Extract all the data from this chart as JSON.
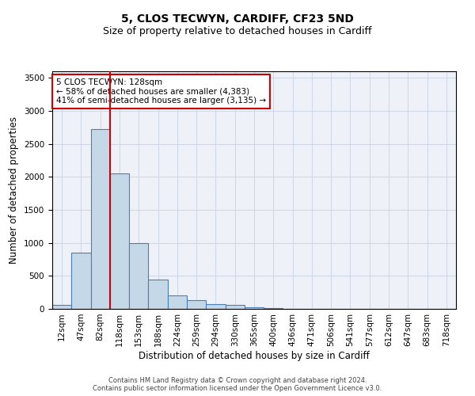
{
  "title1": "5, CLOS TECWYN, CARDIFF, CF23 5ND",
  "title2": "Size of property relative to detached houses in Cardiff",
  "xlabel": "Distribution of detached houses by size in Cardiff",
  "ylabel": "Number of detached properties",
  "footer1": "Contains HM Land Registry data © Crown copyright and database right 2024.",
  "footer2": "Contains public sector information licensed under the Open Government Licence v3.0.",
  "bar_labels": [
    "12sqm",
    "47sqm",
    "82sqm",
    "118sqm",
    "153sqm",
    "188sqm",
    "224sqm",
    "259sqm",
    "294sqm",
    "330sqm",
    "365sqm",
    "400sqm",
    "436sqm",
    "471sqm",
    "506sqm",
    "541sqm",
    "577sqm",
    "612sqm",
    "647sqm",
    "683sqm",
    "718sqm"
  ],
  "bar_values": [
    55,
    850,
    2720,
    2050,
    1000,
    450,
    200,
    130,
    70,
    55,
    25,
    10,
    5,
    5,
    5,
    5,
    5,
    5,
    5,
    5,
    5
  ],
  "bar_color": "#c5d8e8",
  "bar_edge_color": "#4a7fb5",
  "bar_edge_width": 0.8,
  "property_line_index": 3,
  "annotation_text": "5 CLOS TECWYN: 128sqm\n← 58% of detached houses are smaller (4,383)\n41% of semi-detached houses are larger (3,135) →",
  "annotation_box_color": "#ffffff",
  "annotation_border_color": "#cc0000",
  "vline_color": "#cc0000",
  "ylim": [
    0,
    3600
  ],
  "yticks": [
    0,
    500,
    1000,
    1500,
    2000,
    2500,
    3000,
    3500
  ],
  "grid_color": "#d0d8e8",
  "bg_color": "#eef2f8",
  "title1_fontsize": 10,
  "title2_fontsize": 9,
  "xlabel_fontsize": 8.5,
  "ylabel_fontsize": 8.5,
  "tick_fontsize": 7.5,
  "annotation_fontsize": 7.5,
  "footer_fontsize": 6
}
